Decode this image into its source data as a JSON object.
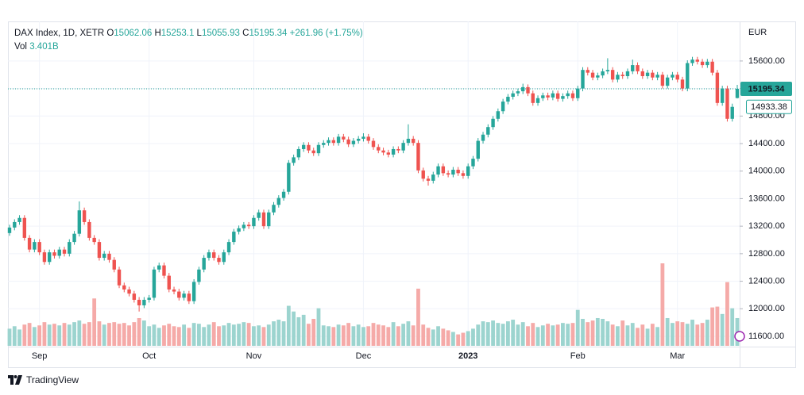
{
  "chart_data": {
    "type": "candlestick",
    "title": "DAX Index, 1D, XETR",
    "legend_keys": [
      "O",
      "H",
      "L",
      "C"
    ],
    "change": "+261.96 (+1.75%)",
    "volume_name": "Vol",
    "volume_label": "3.401B",
    "currency": "EUR",
    "watermark": "TradingView",
    "up_color": "#26a69a",
    "down_color": "#ef5350",
    "volume_up_color": "#9cd4cf",
    "volume_down_color": "#f5aaa8",
    "grid": true,
    "ylim": [
      11450,
      16175
    ],
    "yticks": [
      {
        "value": 11600,
        "label": "11600.00"
      },
      {
        "value": 12000,
        "label": "12000.00"
      },
      {
        "value": 12400,
        "label": "12400.00"
      },
      {
        "value": 12800,
        "label": "12800.00"
      },
      {
        "value": 13200,
        "label": "13200.00"
      },
      {
        "value": 13600,
        "label": "13600.00"
      },
      {
        "value": 14000,
        "label": "14000.00"
      },
      {
        "value": 14400,
        "label": "14400.00"
      },
      {
        "value": 14800,
        "label": "14800.00"
      },
      {
        "value": 15200,
        "label": "15200.00"
      },
      {
        "value": 15600,
        "label": "15600.00"
      }
    ],
    "categories": [
      null,
      null,
      null,
      null,
      null,
      null,
      "Sep",
      null,
      null,
      null,
      null,
      null,
      null,
      null,
      null,
      null,
      null,
      null,
      null,
      null,
      null,
      null,
      null,
      null,
      null,
      null,
      null,
      null,
      "Oct",
      null,
      null,
      null,
      null,
      null,
      null,
      null,
      null,
      null,
      null,
      null,
      null,
      null,
      null,
      null,
      null,
      null,
      null,
      null,
      null,
      "Nov",
      null,
      null,
      null,
      null,
      null,
      null,
      null,
      null,
      null,
      null,
      null,
      null,
      null,
      null,
      null,
      null,
      null,
      null,
      null,
      null,
      null,
      "Dec",
      null,
      null,
      null,
      null,
      null,
      null,
      null,
      null,
      null,
      null,
      null,
      null,
      null,
      null,
      null,
      null,
      null,
      null,
      null,
      null,
      "2023",
      null,
      null,
      null,
      null,
      null,
      null,
      null,
      null,
      null,
      null,
      null,
      null,
      null,
      null,
      null,
      null,
      null,
      null,
      null,
      null,
      null,
      "Feb",
      null,
      null,
      null,
      null,
      null,
      null,
      null,
      null,
      null,
      null,
      null,
      null,
      null,
      null,
      null,
      null,
      null,
      null,
      null,
      "Mar",
      null,
      null,
      null,
      null,
      null,
      null,
      null,
      null,
      null,
      null,
      null,
      null
    ],
    "open": [
      13100,
      13180,
      13260,
      13320,
      13030,
      12860,
      12970,
      12820,
      12680,
      12820,
      12770,
      12860,
      12800,
      12970,
      13090,
      13430,
      13260,
      13030,
      12970,
      12740,
      12800,
      12710,
      12570,
      12340,
      12280,
      12220,
      12130,
      12050,
      12130,
      12160,
      12570,
      12630,
      12480,
      12280,
      12250,
      12160,
      12220,
      12110,
      12390,
      12570,
      12740,
      12820,
      12740,
      12680,
      12820,
      12970,
      13120,
      13170,
      13220,
      13200,
      13320,
      13400,
      13200,
      13400,
      13510,
      13610,
      13700,
      14120,
      14200,
      14320,
      14380,
      14300,
      14260,
      14380,
      14410,
      14450,
      14410,
      14500,
      14460,
      14390,
      14440,
      14470,
      14500,
      14440,
      14350,
      14300,
      14270,
      14240,
      14320,
      14300,
      14410,
      14470,
      14410,
      14010,
      13890,
      13860,
      13950,
      14070,
      13970,
      13950,
      14020,
      13970,
      13930,
      14070,
      14180,
      14440,
      14530,
      14640,
      14760,
      14870,
      15010,
      15080,
      15130,
      15160,
      15220,
      15130,
      14990,
      15060,
      15100,
      15070,
      15130,
      15050,
      15090,
      15130,
      15060,
      15200,
      15470,
      15430,
      15360,
      15390,
      15450,
      15470,
      15330,
      15400,
      15380,
      15450,
      15540,
      15450,
      15380,
      15430,
      15360,
      15400,
      15240,
      15360,
      15400,
      15330,
      15200,
      15570,
      15620,
      15590,
      15540,
      15590,
      15430,
      14990,
      15200,
      14760,
      15062.06
    ],
    "high": [
      13220,
      13300,
      13360,
      13360,
      13070,
      13010,
      13010,
      12860,
      12860,
      12860,
      12900,
      12900,
      13010,
      13130,
      13560,
      13470,
      13300,
      13070,
      13010,
      12840,
      12840,
      12750,
      12610,
      12380,
      12320,
      12260,
      12170,
      12170,
      12200,
      12610,
      12670,
      12670,
      12520,
      12320,
      12290,
      12260,
      12260,
      12430,
      12610,
      12780,
      12860,
      12860,
      12780,
      12860,
      13010,
      13160,
      13210,
      13260,
      13260,
      13360,
      13440,
      13440,
      13440,
      13550,
      13650,
      13740,
      14160,
      14240,
      14360,
      14420,
      14420,
      14340,
      14420,
      14450,
      14490,
      14490,
      14540,
      14540,
      14500,
      14480,
      14510,
      14550,
      14540,
      14480,
      14390,
      14340,
      14310,
      14360,
      14360,
      14450,
      14680,
      14510,
      14450,
      14050,
      13930,
      13990,
      14110,
      14110,
      14010,
      14060,
      14060,
      14010,
      14110,
      14220,
      14480,
      14570,
      14680,
      14800,
      14910,
      15050,
      15120,
      15170,
      15200,
      15270,
      15260,
      15170,
      15100,
      15140,
      15140,
      15170,
      15170,
      15130,
      15170,
      15170,
      15240,
      15510,
      15510,
      15470,
      15430,
      15490,
      15640,
      15510,
      15440,
      15440,
      15490,
      15620,
      15580,
      15490,
      15470,
      15470,
      15440,
      15440,
      15400,
      15440,
      15440,
      15370,
      15610,
      15660,
      15660,
      15630,
      15630,
      15630,
      15470,
      15240,
      15240,
      14980,
      15253.1
    ],
    "low": [
      13060,
      13140,
      13220,
      12990,
      12820,
      12820,
      12780,
      12640,
      12640,
      12730,
      12730,
      12760,
      12760,
      12930,
      13050,
      13220,
      12990,
      12930,
      12700,
      12700,
      12670,
      12530,
      12300,
      12240,
      12180,
      12090,
      11960,
      12010,
      12090,
      12120,
      12530,
      12440,
      12240,
      12210,
      12120,
      12120,
      12070,
      12070,
      12350,
      12530,
      12700,
      12700,
      12640,
      12640,
      12780,
      12930,
      13080,
      13130,
      13160,
      13160,
      13280,
      13160,
      13160,
      13360,
      13470,
      13570,
      13660,
      14080,
      14160,
      14280,
      14260,
      14220,
      14220,
      14340,
      14370,
      14370,
      14370,
      14420,
      14350,
      14350,
      14400,
      14430,
      14400,
      14310,
      14260,
      14230,
      14200,
      14200,
      14260,
      14260,
      14370,
      14370,
      13970,
      13850,
      13790,
      13820,
      13910,
      13930,
      13910,
      13910,
      13930,
      13890,
      13890,
      14030,
      14140,
      14400,
      14490,
      14600,
      14720,
      14830,
      14970,
      15040,
      15090,
      15120,
      15090,
      14950,
      14950,
      15020,
      15030,
      15030,
      15010,
      15010,
      15050,
      15020,
      15020,
      15160,
      15390,
      15320,
      15320,
      15350,
      15410,
      15290,
      15290,
      15340,
      15340,
      15410,
      15410,
      15340,
      15340,
      15320,
      15320,
      15200,
      15200,
      15320,
      15290,
      15160,
      15160,
      15530,
      15550,
      15500,
      15500,
      15390,
      14950,
      14950,
      14720,
      14720,
      15055.93
    ],
    "close": [
      13180,
      13260,
      13320,
      13030,
      12860,
      12970,
      12820,
      12680,
      12820,
      12770,
      12860,
      12800,
      12970,
      13090,
      13430,
      13260,
      13030,
      12970,
      12740,
      12800,
      12710,
      12570,
      12340,
      12280,
      12220,
      12130,
      12050,
      12130,
      12160,
      12570,
      12630,
      12480,
      12280,
      12250,
      12160,
      12220,
      12110,
      12390,
      12570,
      12740,
      12820,
      12740,
      12680,
      12820,
      12970,
      13120,
      13170,
      13220,
      13200,
      13320,
      13400,
      13200,
      13400,
      13510,
      13610,
      13700,
      14120,
      14200,
      14320,
      14380,
      14300,
      14260,
      14380,
      14410,
      14450,
      14410,
      14500,
      14460,
      14390,
      14440,
      14470,
      14500,
      14440,
      14350,
      14300,
      14270,
      14240,
      14320,
      14300,
      14410,
      14470,
      14410,
      14010,
      13890,
      13860,
      13950,
      14070,
      13970,
      13950,
      14020,
      13970,
      13930,
      14070,
      14180,
      14440,
      14530,
      14640,
      14760,
      14870,
      15010,
      15080,
      15130,
      15160,
      15220,
      15130,
      14990,
      15060,
      15100,
      15070,
      15130,
      15050,
      15090,
      15130,
      15060,
      15200,
      15470,
      15430,
      15360,
      15390,
      15450,
      15470,
      15330,
      15400,
      15380,
      15450,
      15540,
      15450,
      15380,
      15430,
      15360,
      15400,
      15240,
      15360,
      15400,
      15330,
      15200,
      15570,
      15620,
      15590,
      15540,
      15590,
      15430,
      14990,
      15200,
      14760,
      14933.38,
      15195.34
    ],
    "volume": [
      2.1,
      2.4,
      2.0,
      2.6,
      2.8,
      2.3,
      2.5,
      2.9,
      2.6,
      2.7,
      2.5,
      2.8,
      2.6,
      2.9,
      3.1,
      2.7,
      2.9,
      5.8,
      3.0,
      2.6,
      2.8,
      2.9,
      2.7,
      2.8,
      2.5,
      2.9,
      3.4,
      3.1,
      2.4,
      2.6,
      2.2,
      2.5,
      2.7,
      2.4,
      2.3,
      2.6,
      2.2,
      2.8,
      2.7,
      2.3,
      2.6,
      2.9,
      2.4,
      2.5,
      2.8,
      2.6,
      2.7,
      2.9,
      2.8,
      2.4,
      2.5,
      2.3,
      2.6,
      3.0,
      3.2,
      3.0,
      4.9,
      4.2,
      3.5,
      3.8,
      2.7,
      3.3,
      4.6,
      2.5,
      2.4,
      2.3,
      2.6,
      2.5,
      2.8,
      2.4,
      2.6,
      2.3,
      2.4,
      2.8,
      2.6,
      2.5,
      2.3,
      2.9,
      2.4,
      2.7,
      3.0,
      2.5,
      7.0,
      2.6,
      2.2,
      2.0,
      2.4,
      2.1,
      1.9,
      1.7,
      1.4,
      1.6,
      1.8,
      2.1,
      2.6,
      3.0,
      2.9,
      3.1,
      2.8,
      2.7,
      3.0,
      3.2,
      2.6,
      2.9,
      2.4,
      2.8,
      2.3,
      2.5,
      2.7,
      2.5,
      2.6,
      2.8,
      2.7,
      2.8,
      4.4,
      3.3,
      2.9,
      3.1,
      3.4,
      3.3,
      3.0,
      2.6,
      2.4,
      3.1,
      2.5,
      2.8,
      2.2,
      2.6,
      2.1,
      2.7,
      2.3,
      10.1,
      3.4,
      2.8,
      3.0,
      2.9,
      2.7,
      3.2,
      2.6,
      2.8,
      3.2,
      4.7,
      4.8,
      3.9,
      7.8,
      4.6,
      3.401
    ]
  }
}
